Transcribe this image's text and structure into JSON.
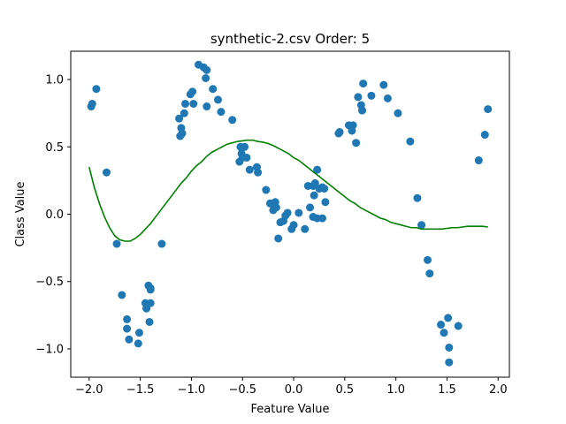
{
  "chart_data": {
    "type": "scatter",
    "title": "synthetic-2.csv Order: 5",
    "xlabel": "Feature Value",
    "ylabel": "Class Value",
    "xlim": [
      -2.18,
      2.11
    ],
    "ylim": [
      -1.21,
      1.21
    ],
    "xticks": [
      -2.0,
      -1.5,
      -1.0,
      -0.5,
      0.0,
      0.5,
      1.0,
      1.5,
      2.0
    ],
    "xtick_labels": [
      "−2.0",
      "−1.5",
      "−1.0",
      "−0.5",
      "0.0",
      "0.5",
      "1.0",
      "1.5",
      "2.0"
    ],
    "yticks": [
      -1.0,
      -0.5,
      0.0,
      0.5,
      1.0
    ],
    "ytick_labels": [
      "−1.0",
      "−0.5",
      "0.0",
      "0.5",
      "1.0"
    ],
    "grid": false,
    "colors": {
      "points": "#1f77b4",
      "fit": "#008000"
    },
    "series": [
      {
        "type": "scatter",
        "points": [
          [
            -1.98,
            0.8
          ],
          [
            -1.97,
            0.82
          ],
          [
            -1.93,
            0.93
          ],
          [
            -1.83,
            0.31
          ],
          [
            -1.73,
            -0.22
          ],
          [
            -1.68,
            -0.6
          ],
          [
            -1.63,
            -0.78
          ],
          [
            -1.63,
            -0.85
          ],
          [
            -1.61,
            -0.93
          ],
          [
            -1.52,
            -0.96
          ],
          [
            -1.51,
            -0.88
          ],
          [
            -1.45,
            -0.66
          ],
          [
            -1.44,
            -0.7
          ],
          [
            -1.42,
            -0.53
          ],
          [
            -1.41,
            -0.8
          ],
          [
            -1.4,
            -0.55
          ],
          [
            -1.4,
            -0.56
          ],
          [
            -1.4,
            -0.66
          ],
          [
            -1.29,
            -0.22
          ],
          [
            -1.12,
            0.71
          ],
          [
            -1.11,
            0.58
          ],
          [
            -1.1,
            0.64
          ],
          [
            -1.09,
            0.6
          ],
          [
            -1.07,
            0.75
          ],
          [
            -1.06,
            0.82
          ],
          [
            -1.01,
            0.89
          ],
          [
            -0.99,
            0.91
          ],
          [
            -0.98,
            0.82
          ],
          [
            -0.93,
            1.11
          ],
          [
            -0.88,
            1.09
          ],
          [
            -0.85,
            1.07
          ],
          [
            -0.86,
            1.01
          ],
          [
            -0.85,
            0.8
          ],
          [
            -0.79,
            0.93
          ],
          [
            -0.74,
            0.85
          ],
          [
            -0.71,
            0.76
          ],
          [
            -0.6,
            0.7
          ],
          [
            -0.53,
            0.39
          ],
          [
            -0.52,
            0.5
          ],
          [
            -0.51,
            0.45
          ],
          [
            -0.5,
            0.42
          ],
          [
            -0.48,
            0.5
          ],
          [
            -0.46,
            0.42
          ],
          [
            -0.43,
            0.33
          ],
          [
            -0.36,
            0.35
          ],
          [
            -0.35,
            0.31
          ],
          [
            -0.27,
            0.18
          ],
          [
            -0.23,
            0.08
          ],
          [
            -0.2,
            0.03
          ],
          [
            -0.18,
            0.09
          ],
          [
            -0.17,
            0.05
          ],
          [
            -0.15,
            -0.18
          ],
          [
            -0.13,
            -0.06
          ],
          [
            -0.1,
            -0.05
          ],
          [
            -0.08,
            -0.01
          ],
          [
            -0.06,
            0.01
          ],
          [
            -0.02,
            -0.11
          ],
          [
            0.0,
            -0.08
          ],
          [
            0.05,
            0.01
          ],
          [
            0.11,
            -0.11
          ],
          [
            0.14,
            0.21
          ],
          [
            0.16,
            0.05
          ],
          [
            0.19,
            -0.02
          ],
          [
            0.19,
            0.21
          ],
          [
            0.2,
            0.14
          ],
          [
            0.21,
            0.23
          ],
          [
            0.23,
            -0.03
          ],
          [
            0.23,
            0.33
          ],
          [
            0.25,
            0.19
          ],
          [
            0.28,
            0.2
          ],
          [
            0.28,
            -0.03
          ],
          [
            0.3,
            0.19
          ],
          [
            0.31,
            0.09
          ],
          [
            0.44,
            0.6
          ],
          [
            0.45,
            0.61
          ],
          [
            0.54,
            0.66
          ],
          [
            0.57,
            0.62
          ],
          [
            0.58,
            0.66
          ],
          [
            0.61,
            0.53
          ],
          [
            0.63,
            0.87
          ],
          [
            0.66,
            0.81
          ],
          [
            0.67,
            0.77
          ],
          [
            0.68,
            0.97
          ],
          [
            0.76,
            0.88
          ],
          [
            0.88,
            0.96
          ],
          [
            0.92,
            0.86
          ],
          [
            1.02,
            0.75
          ],
          [
            1.14,
            0.54
          ],
          [
            1.21,
            0.12
          ],
          [
            1.25,
            -0.08
          ],
          [
            1.31,
            -0.34
          ],
          [
            1.33,
            -0.44
          ],
          [
            1.44,
            -0.82
          ],
          [
            1.47,
            -0.88
          ],
          [
            1.51,
            -0.77
          ],
          [
            1.52,
            -0.99
          ],
          [
            1.52,
            -1.1
          ],
          [
            1.61,
            -0.83
          ],
          [
            1.81,
            0.4
          ],
          [
            1.87,
            0.59
          ],
          [
            1.9,
            0.78
          ]
        ]
      },
      {
        "type": "line",
        "points": [
          [
            -2.0,
            0.35
          ],
          [
            -1.95,
            0.2
          ],
          [
            -1.9,
            0.08
          ],
          [
            -1.85,
            -0.02
          ],
          [
            -1.8,
            -0.1
          ],
          [
            -1.75,
            -0.16
          ],
          [
            -1.7,
            -0.19
          ],
          [
            -1.65,
            -0.2
          ],
          [
            -1.6,
            -0.2
          ],
          [
            -1.55,
            -0.18
          ],
          [
            -1.5,
            -0.15
          ],
          [
            -1.45,
            -0.11
          ],
          [
            -1.4,
            -0.07
          ],
          [
            -1.35,
            -0.02
          ],
          [
            -1.3,
            0.03
          ],
          [
            -1.25,
            0.08
          ],
          [
            -1.2,
            0.13
          ],
          [
            -1.15,
            0.18
          ],
          [
            -1.1,
            0.23
          ],
          [
            -1.05,
            0.27
          ],
          [
            -1.0,
            0.32
          ],
          [
            -0.95,
            0.36
          ],
          [
            -0.9,
            0.39
          ],
          [
            -0.85,
            0.43
          ],
          [
            -0.8,
            0.46
          ],
          [
            -0.75,
            0.48
          ],
          [
            -0.7,
            0.5
          ],
          [
            -0.65,
            0.52
          ],
          [
            -0.6,
            0.53
          ],
          [
            -0.55,
            0.54
          ],
          [
            -0.5,
            0.545
          ],
          [
            -0.45,
            0.55
          ],
          [
            -0.4,
            0.55
          ],
          [
            -0.35,
            0.54
          ],
          [
            -0.3,
            0.535
          ],
          [
            -0.25,
            0.525
          ],
          [
            -0.2,
            0.51
          ],
          [
            -0.15,
            0.49
          ],
          [
            -0.1,
            0.47
          ],
          [
            -0.05,
            0.45
          ],
          [
            0.0,
            0.42
          ],
          [
            0.05,
            0.4
          ],
          [
            0.1,
            0.37
          ],
          [
            0.15,
            0.34
          ],
          [
            0.2,
            0.31
          ],
          [
            0.25,
            0.28
          ],
          [
            0.3,
            0.25
          ],
          [
            0.35,
            0.22
          ],
          [
            0.4,
            0.19
          ],
          [
            0.45,
            0.16
          ],
          [
            0.5,
            0.13
          ],
          [
            0.55,
            0.1
          ],
          [
            0.6,
            0.08
          ],
          [
            0.65,
            0.05
          ],
          [
            0.7,
            0.03
          ],
          [
            0.75,
            0.01
          ],
          [
            0.8,
            -0.01
          ],
          [
            0.85,
            -0.03
          ],
          [
            0.9,
            -0.04
          ],
          [
            0.95,
            -0.06
          ],
          [
            1.0,
            -0.07
          ],
          [
            1.05,
            -0.08
          ],
          [
            1.1,
            -0.09
          ],
          [
            1.15,
            -0.1
          ],
          [
            1.2,
            -0.1
          ],
          [
            1.25,
            -0.11
          ],
          [
            1.3,
            -0.11
          ],
          [
            1.35,
            -0.11
          ],
          [
            1.4,
            -0.11
          ],
          [
            1.45,
            -0.11
          ],
          [
            1.5,
            -0.105
          ],
          [
            1.55,
            -0.1
          ],
          [
            1.6,
            -0.1
          ],
          [
            1.65,
            -0.095
          ],
          [
            1.7,
            -0.09
          ],
          [
            1.75,
            -0.09
          ],
          [
            1.8,
            -0.09
          ],
          [
            1.85,
            -0.09
          ],
          [
            1.9,
            -0.095
          ]
        ]
      }
    ]
  }
}
